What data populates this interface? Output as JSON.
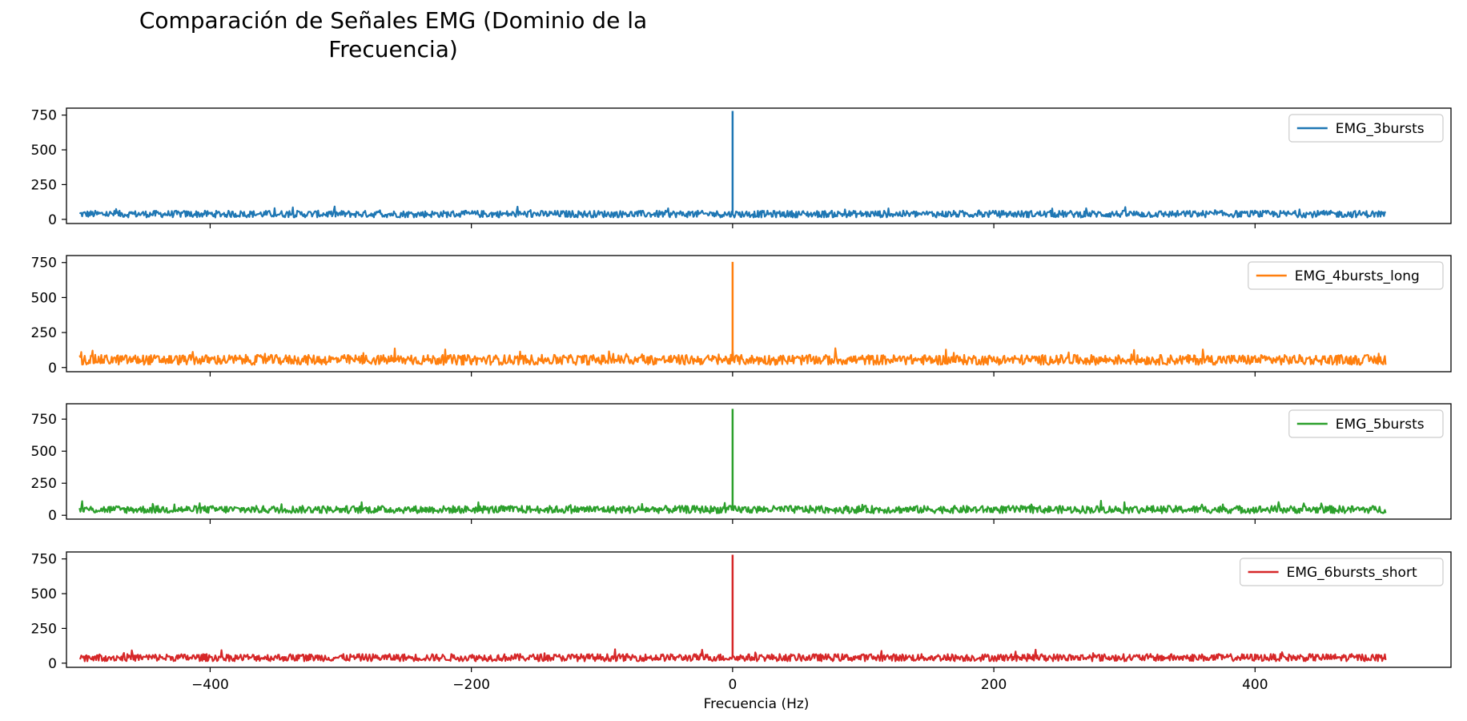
{
  "figure_title": "Comparación de Señales EMG (Dominio de la Frecuencia)",
  "chart_data": [
    {
      "type": "line",
      "title": "",
      "series": [
        {
          "name": "EMG_3bursts",
          "color": "#1f77b4",
          "peak_x": 0,
          "peak_y": 780,
          "noise_baseline": 38,
          "noise_max": 95
        }
      ],
      "xlim": [
        -510,
        550
      ],
      "ylim": [
        -30,
        800
      ],
      "xticks": [
        -400,
        -200,
        0,
        200,
        400
      ],
      "yticks": [
        0,
        250,
        500,
        750
      ],
      "xlabel": "",
      "ylabel": "",
      "legend": "top-right",
      "grid": false
    },
    {
      "type": "line",
      "title": "",
      "series": [
        {
          "name": "EMG_4bursts_long",
          "color": "#ff7f0e",
          "peak_x": 0,
          "peak_y": 755,
          "noise_baseline": 55,
          "noise_max": 140
        }
      ],
      "xlim": [
        -510,
        550
      ],
      "ylim": [
        -30,
        800
      ],
      "xticks": [
        -400,
        -200,
        0,
        200,
        400
      ],
      "yticks": [
        0,
        250,
        500,
        750
      ],
      "xlabel": "",
      "ylabel": "",
      "legend": "top-right",
      "grid": false
    },
    {
      "type": "line",
      "title": "",
      "series": [
        {
          "name": "EMG_5bursts",
          "color": "#2ca02c",
          "peak_x": 0,
          "peak_y": 830,
          "noise_baseline": 45,
          "noise_max": 115
        }
      ],
      "xlim": [
        -510,
        550
      ],
      "ylim": [
        -30,
        870
      ],
      "xticks": [
        -400,
        -200,
        0,
        200,
        400
      ],
      "yticks": [
        0,
        250,
        500,
        750
      ],
      "xlabel": "",
      "ylabel": "",
      "legend": "top-right",
      "grid": false
    },
    {
      "type": "line",
      "title": "",
      "series": [
        {
          "name": "EMG_6bursts_short",
          "color": "#d62728",
          "peak_x": 0,
          "peak_y": 780,
          "noise_baseline": 40,
          "noise_max": 100
        }
      ],
      "xlim": [
        -510,
        550
      ],
      "ylim": [
        -30,
        800
      ],
      "xticks": [
        -400,
        -200,
        0,
        200,
        400
      ],
      "yticks": [
        0,
        250,
        500,
        750
      ],
      "xlabel": "Frecuencia (Hz)",
      "ylabel": "",
      "legend": "top-right",
      "grid": false
    }
  ],
  "x_range": [
    -500,
    500
  ]
}
